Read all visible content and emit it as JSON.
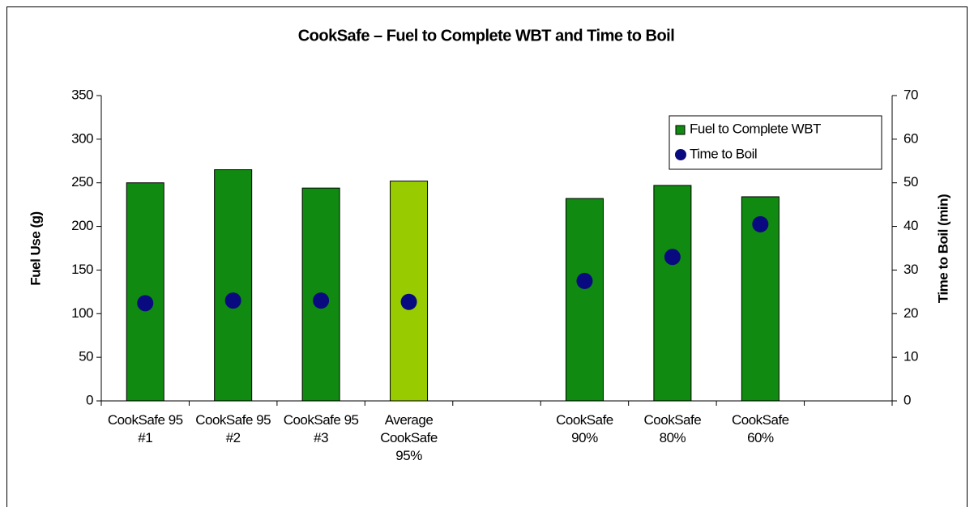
{
  "chart_data": {
    "type": "bar",
    "title": "CookSafe – Fuel to Complete WBT and Time to Boil",
    "y_label": "Fuel Use (g)",
    "y2_label": "Time to Boil (min)",
    "categories": [
      "CookSafe 95 #1",
      "CookSafe 95 #2",
      "CookSafe 95 #3",
      "Average CookSafe 95%",
      null,
      "CookSafe 90%",
      "CookSafe 80%",
      "CookSafe 60%",
      null
    ],
    "series": [
      {
        "name": "Fuel to Complete WBT",
        "type": "bar",
        "color": "#118a11",
        "colors": [
          "#118a11",
          "#118a11",
          "#118a11",
          "#99cc00",
          null,
          "#118a11",
          "#118a11",
          "#118a11",
          null
        ],
        "values": [
          250,
          265,
          244,
          252,
          null,
          232,
          247,
          234,
          null
        ]
      },
      {
        "name": "Time to Boil",
        "type": "scatter",
        "axis": "y2",
        "color": "#0a0a80",
        "values": [
          22.4,
          23,
          23,
          22.7,
          null,
          27.5,
          33,
          40.5,
          null
        ]
      }
    ],
    "ylim": [
      0,
      350
    ],
    "yticks": [
      0,
      50,
      100,
      150,
      200,
      250,
      300,
      350
    ],
    "y2lim": [
      0,
      70
    ],
    "y2ticks": [
      0,
      10,
      20,
      30,
      40,
      50,
      60,
      70
    ],
    "grid": false,
    "legend": "top-right"
  }
}
